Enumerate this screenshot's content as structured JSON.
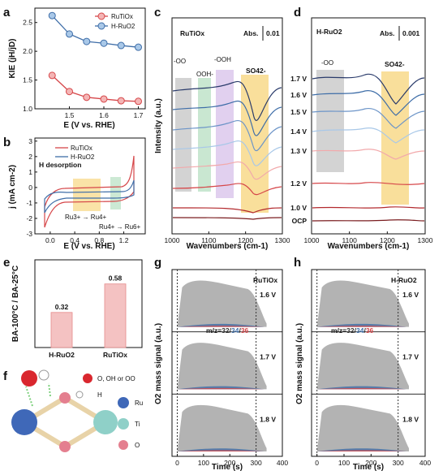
{
  "figure": {
    "panel_letters": [
      "a",
      "b",
      "c",
      "d",
      "e",
      "f",
      "g",
      "h"
    ]
  },
  "colors": {
    "red": "#d6474a",
    "blue_fill": "#a9c8e8",
    "blue_line": "#3f6ea8",
    "gray_box": "#c8c8c8",
    "green_box": "#bfe3c9",
    "purple_box": "#dcc8ec",
    "yellow_box": "#f8d98a",
    "bar_fill": "#f4c2c2",
    "ru_node": "#3f68b8",
    "ti_node": "#8fd0c8",
    "o_node": "#e47f8f",
    "h_node": "#ffffff",
    "ads_node": "#d9272e"
  },
  "chart_data": [
    {
      "id": "a",
      "type": "line",
      "xlabel": "E (V vs. RHE)",
      "ylabel": "KIE (jH/jD)",
      "xlim": [
        1.4,
        1.72
      ],
      "ylim": [
        1.0,
        2.75
      ],
      "xticks": [
        "1.5",
        "1.6",
        "1.7"
      ],
      "yticks": [
        "1.0",
        "1.5",
        "2.0",
        "2.5"
      ],
      "legend": "top-right",
      "series": [
        {
          "name": "RuTiOx",
          "color": "#d6474a",
          "x": [
            1.45,
            1.5,
            1.55,
            1.6,
            1.65,
            1.7
          ],
          "y": [
            1.58,
            1.3,
            1.2,
            1.17,
            1.14,
            1.13
          ]
        },
        {
          "name": "H-RuO2",
          "color": "#3f6ea8",
          "x": [
            1.45,
            1.5,
            1.55,
            1.6,
            1.65,
            1.7
          ],
          "y": [
            2.62,
            2.3,
            2.17,
            2.14,
            2.1,
            2.07
          ]
        }
      ]
    },
    {
      "id": "b",
      "type": "line",
      "xlabel": "E (V vs. RHE)",
      "ylabel": "j (mA cm-2)",
      "xlim": [
        -0.25,
        1.55
      ],
      "ylim": [
        -3,
        3.2
      ],
      "xticks": [
        "0.0",
        "0.4",
        "0.8",
        "1.2"
      ],
      "yticks": [
        "-3",
        "-2",
        "-1",
        "0",
        "1",
        "2",
        "3"
      ],
      "legend": "top-left",
      "series": [
        {
          "name": "RuTiOx",
          "color": "#d6474a"
        },
        {
          "name": "H-RuO2",
          "color": "#3f6ea8"
        }
      ],
      "annotations": [
        "H desorption",
        "Ru3+ → Ru4+",
        "Ru4+ → Ru6+"
      ]
    },
    {
      "id": "c",
      "type": "line",
      "title": "RuTiOx",
      "xlabel": "Wavenumbers (cm-1)",
      "ylabel": "Intensity (a.u.)",
      "xlim": [
        1000,
        1300
      ],
      "xticks": [
        "1000",
        "1100",
        "1200",
        "1300"
      ],
      "scale_label": "Abs.",
      "scale_value": "0.01",
      "band_labels": [
        "-OO",
        "OOH-",
        "-OOH",
        "SO42-"
      ]
    },
    {
      "id": "d",
      "type": "line",
      "title": "H-RuO2",
      "xlabel": "Wavenumbers (cm-1)",
      "xlim": [
        1000,
        1300
      ],
      "xticks": [
        "1000",
        "1100",
        "1200",
        "1300"
      ],
      "scale_label": "Abs.",
      "scale_value": "0.001",
      "band_labels": [
        "-OO",
        "SO42-"
      ],
      "potentials": [
        "1.7 V",
        "1.6 V",
        "1.5 V",
        "1.4 V",
        "1.3 V",
        "1.2 V",
        "1.0 V",
        "OCP"
      ]
    },
    {
      "id": "e",
      "type": "bar",
      "ylabel": "BA-100°C / BA-25°C",
      "categories": [
        "H-RuO2",
        "RuTiOx"
      ],
      "values": [
        0.32,
        0.58
      ],
      "value_labels": [
        "0.32",
        "0.58"
      ],
      "ylim": [
        0,
        0.8
      ]
    },
    {
      "id": "g",
      "type": "area",
      "title": "RuTiOx",
      "xlabel": "Time (s)",
      "ylabel": "O2 mass signal (a.u.)",
      "xlim": [
        -20,
        400
      ],
      "xticks": [
        "0",
        "100",
        "200",
        "300",
        "400"
      ],
      "mz_label": "m/z=",
      "mz_values": [
        "32",
        "34",
        "36"
      ],
      "potentials": [
        "1.6 V",
        "1.7 V",
        "1.8 V"
      ]
    },
    {
      "id": "h",
      "type": "area",
      "title": "H-RuO2",
      "xlabel": "Time (s)",
      "ylabel": "O2 mass signal (a.u.)",
      "xlim": [
        -20,
        400
      ],
      "xticks": [
        "0",
        "100",
        "200",
        "300",
        "400"
      ],
      "mz_label": "m/z=",
      "mz_values": [
        "32",
        "34",
        "36"
      ],
      "potentials": [
        "1.6 V",
        "1.7 V",
        "1.8 V"
      ]
    }
  ],
  "legend_f": {
    "items": [
      "O, OH or OO",
      "H",
      "Ru",
      "Ti",
      "O"
    ]
  }
}
